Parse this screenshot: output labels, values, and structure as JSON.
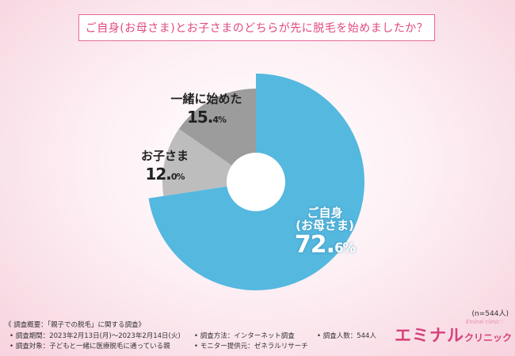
{
  "title": "ご自身(お母さま)とお子さまのどちらが先に脱毛を始めましたか？",
  "chart_data": {
    "type": "pie",
    "donut": true,
    "slices": [
      {
        "label": "ご自身\n(お母さま)",
        "value": 72.6,
        "color": "#55b8df"
      },
      {
        "label": "お子さま",
        "value": 12.0,
        "color": "#bdbdbd"
      },
      {
        "label": "一緒に始めた",
        "value": 15.4,
        "color": "#9c9c9c"
      }
    ],
    "labels": {
      "mother_line1": "ご自身",
      "mother_line2": "(お母さま)",
      "mother_pct_int": "72.",
      "mother_pct_dec": "6%",
      "child": "お子さま",
      "child_pct_int": "12.",
      "child_pct_dec": "0%",
      "together": "一緒に始めた",
      "together_pct_int": "15.",
      "together_pct_dec": "4%"
    }
  },
  "sample_note": "(n=544人)",
  "footer": {
    "overview": "《 調査概要：「親子での脱毛」に関する調査》",
    "period": "• 調査期間：2023年2月13日(月)〜2023年2月14日(火)",
    "target": "• 調査対象：子どもと一緒に医療脱毛に通っている親",
    "method": "• 調査方法：インターネット調査",
    "provider": "• モニター提供元：ゼネラルリサーチ",
    "count": "• 調査人数：544人"
  },
  "logo": {
    "main": "エミナル",
    "sub": "クリニック",
    "tag": "Emiral clinic♡"
  }
}
